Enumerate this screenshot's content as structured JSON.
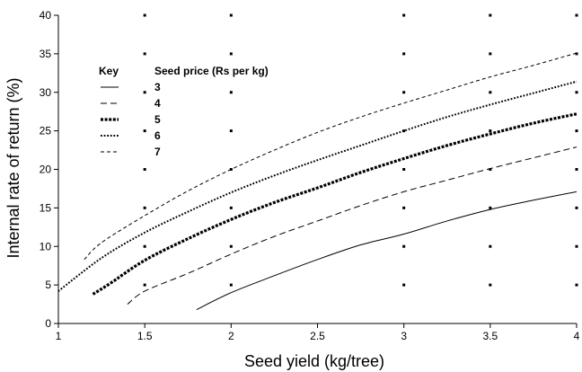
{
  "chart_data": {
    "type": "line",
    "xlabel": "Seed yield (kg/tree)",
    "ylabel": "Internal rate of return (%)",
    "xlim": [
      1,
      4
    ],
    "ylim": [
      0,
      40
    ],
    "x_ticks": [
      "1",
      "1.5",
      "2",
      "2.5",
      "3",
      "3.5",
      "4"
    ],
    "y_ticks": [
      "0",
      "5",
      "10",
      "15",
      "20",
      "25",
      "30",
      "35",
      "40"
    ],
    "grid": "dotted",
    "legend": {
      "placement": "top-left",
      "key_title": "Key",
      "series_title": "Seed  price (Rs per kg)"
    },
    "series": [
      {
        "name": "3",
        "style": "solid",
        "x": [
          1.8,
          2.0,
          2.25,
          2.5,
          2.75,
          3.0,
          3.25,
          3.5,
          3.75,
          4.0
        ],
        "y": [
          1.8,
          4.0,
          6.2,
          8.3,
          10.2,
          11.6,
          13.3,
          14.8,
          16.0,
          17.1
        ]
      },
      {
        "name": "4",
        "style": "long-dash",
        "x": [
          1.4,
          1.5,
          1.75,
          2.0,
          2.25,
          2.5,
          2.75,
          3.0,
          3.25,
          3.5,
          3.75,
          4.0
        ],
        "y": [
          2.5,
          4.2,
          6.5,
          9.0,
          11.3,
          13.3,
          15.3,
          17.1,
          18.6,
          20.1,
          21.5,
          22.9
        ]
      },
      {
        "name": "5",
        "style": "square-dot",
        "x": [
          1.2,
          1.3,
          1.5,
          1.75,
          2.0,
          2.25,
          2.5,
          2.75,
          3.0,
          3.25,
          3.5,
          3.75,
          4.0
        ],
        "y": [
          3.8,
          5.2,
          8.2,
          11.0,
          13.5,
          15.7,
          17.6,
          19.6,
          21.4,
          23.1,
          24.6,
          26.0,
          27.2
        ]
      },
      {
        "name": "6",
        "style": "dotted",
        "x": [
          1.0,
          1.25,
          1.5,
          1.75,
          2.0,
          2.25,
          2.5,
          2.75,
          3.0,
          3.25,
          3.5,
          3.75,
          4.0
        ],
        "y": [
          4.2,
          8.5,
          11.8,
          14.5,
          17.0,
          19.2,
          21.2,
          23.1,
          25.0,
          26.8,
          28.4,
          29.9,
          31.4
        ]
      },
      {
        "name": "7",
        "style": "short-dash",
        "x": [
          1.15,
          1.25,
          1.5,
          1.75,
          2.0,
          2.25,
          2.5,
          2.75,
          3.0,
          3.25,
          3.5,
          3.75,
          4.0
        ],
        "y": [
          8.3,
          10.5,
          14.0,
          17.2,
          20.0,
          22.5,
          24.8,
          26.8,
          28.6,
          30.3,
          32.0,
          33.5,
          35.1
        ]
      }
    ]
  }
}
